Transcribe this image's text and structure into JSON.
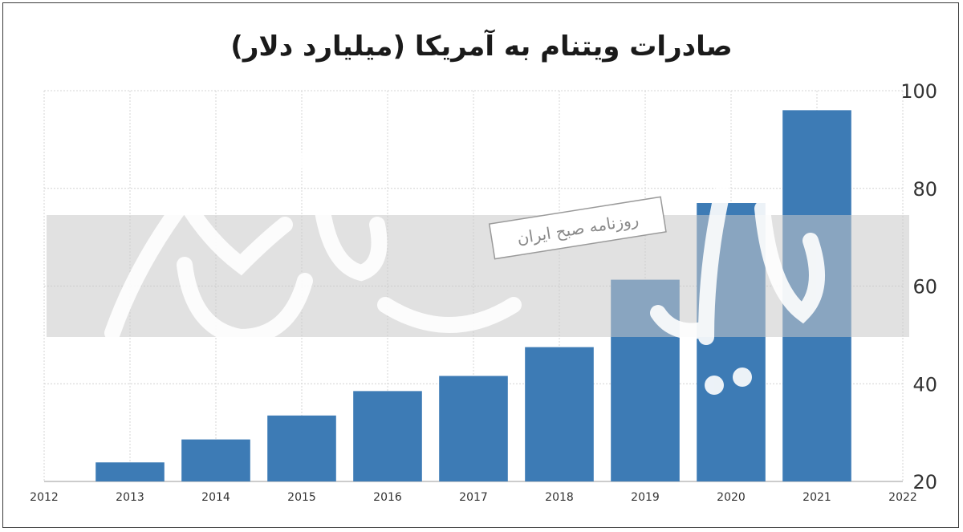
{
  "chart_data": {
    "type": "bar",
    "title": "صادرات ویتنام به آمریکا (میلیارد دلار)",
    "xlabel": "",
    "ylabel": "",
    "x": [
      2013,
      2014,
      2015,
      2016,
      2017,
      2018,
      2019,
      2020,
      2021
    ],
    "values": [
      23.9,
      28.6,
      33.5,
      38.5,
      41.6,
      47.5,
      61.3,
      77.0,
      96.0
    ],
    "x_ticks": [
      "2012",
      "2013",
      "2014",
      "2015",
      "2016",
      "2017",
      "2018",
      "2019",
      "2020",
      "2021",
      "2022"
    ],
    "xlim": [
      2012,
      2022
    ],
    "y_ticks": [
      "20",
      "40",
      "60",
      "80",
      "100"
    ],
    "ylim": [
      20,
      100
    ],
    "grid": true,
    "bar_color": "#3d7bb5",
    "y_axis_side": "right"
  },
  "watermark": {
    "banner_text": "روزنامه صبح ایران",
    "band_color": "#c8c8c8"
  }
}
